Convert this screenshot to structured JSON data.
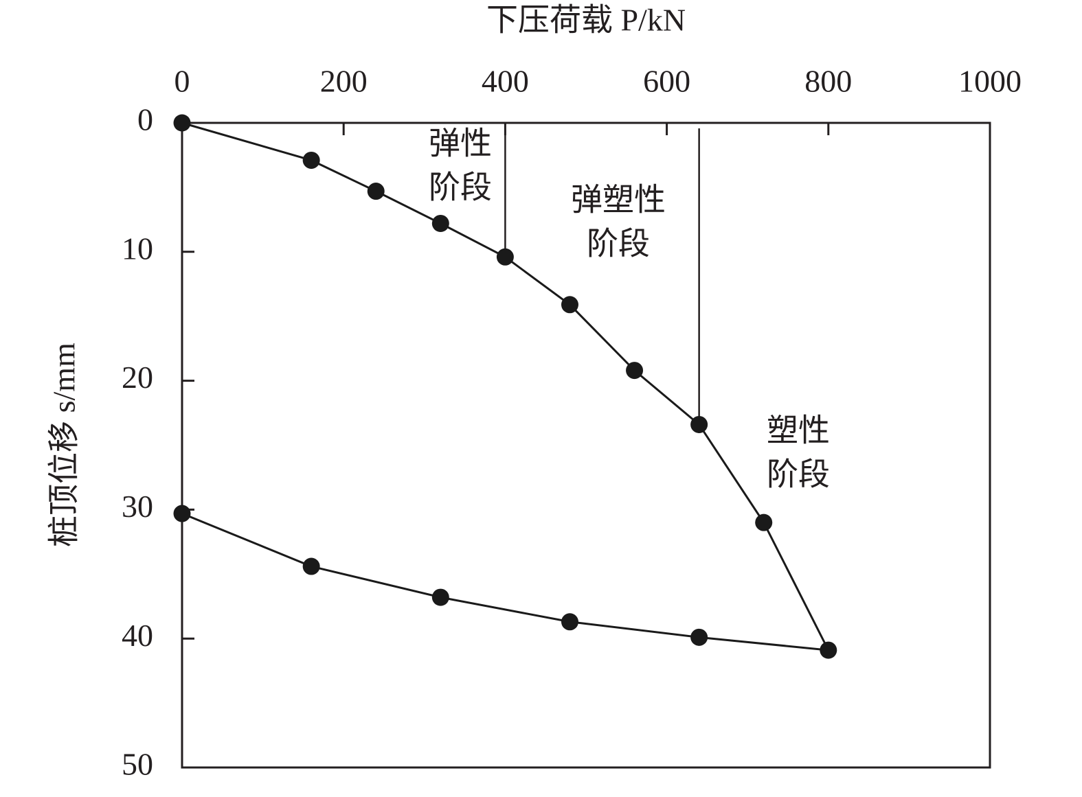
{
  "chart_data": {
    "type": "line",
    "xlabel": "下压荷载 P/kN",
    "ylabel": "桩顶位移 s/mm",
    "xlim": [
      0,
      1000
    ],
    "xticks": [
      0,
      200,
      400,
      600,
      800,
      1000
    ],
    "ylim": [
      0,
      50
    ],
    "yticks": [
      0,
      10,
      20,
      30,
      40,
      50
    ],
    "y_inverted": true,
    "x_axis_position": "top",
    "color": "#1a1a1a",
    "x": [
      0,
      160,
      240,
      320,
      400,
      480,
      560,
      640,
      720,
      800,
      640,
      480,
      320,
      160,
      0
    ],
    "values": [
      0,
      2.9,
      5.3,
      7.8,
      10.4,
      14.1,
      19.2,
      23.4,
      31.0,
      40.9,
      39.9,
      38.7,
      36.8,
      34.4,
      30.3
    ],
    "phase_boundaries": [
      400,
      640
    ],
    "annotations": [
      [
        "弹性",
        "阶段"
      ],
      [
        "弹塑性",
        "阶段"
      ],
      [
        "塑性",
        "阶段"
      ]
    ]
  }
}
